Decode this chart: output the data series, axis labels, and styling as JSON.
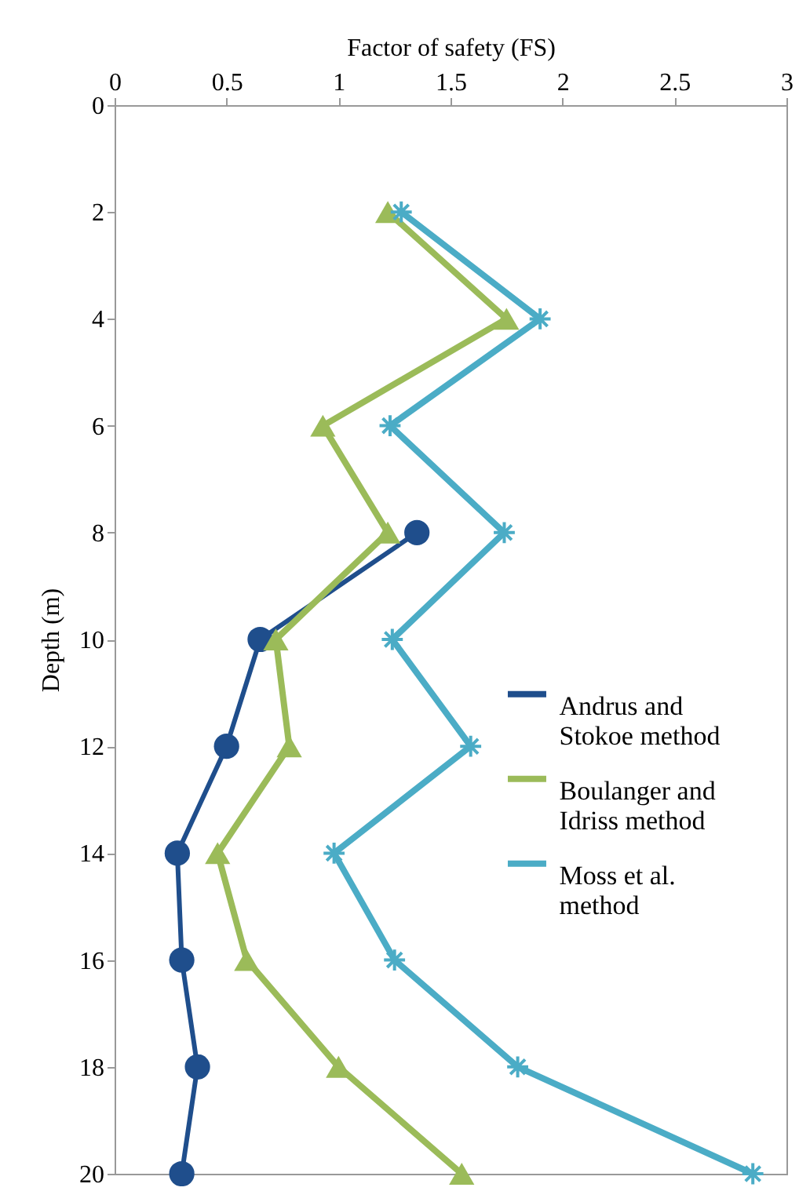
{
  "chart_data": {
    "type": "line",
    "xlabel": "Factor of safety (FS)",
    "ylabel": "Depth (m)",
    "xlim": [
      0,
      3
    ],
    "xticks": [
      0,
      0.5,
      1,
      1.5,
      2,
      2.5,
      3
    ],
    "ylim": [
      20,
      0
    ],
    "yticks": [
      0,
      2,
      4,
      6,
      8,
      10,
      12,
      14,
      16,
      18,
      20
    ],
    "grid": false,
    "legend": "right",
    "line_style": "solid",
    "series": [
      {
        "name": "Andrus and Stokoe method",
        "color": "#1f4e8c",
        "marker": "circle",
        "x": [
          1.35,
          0.65,
          0.5,
          0.28,
          0.3,
          0.37,
          0.3
        ],
        "values": [
          8,
          10,
          12,
          14,
          16,
          18,
          20
        ]
      },
      {
        "name": "Boulanger and Idriss method",
        "color": "#9bbb59",
        "marker": "triangle",
        "x": [
          1.22,
          1.75,
          0.93,
          1.22,
          0.72,
          0.78,
          0.46,
          0.59,
          1.0,
          1.55
        ],
        "values": [
          2,
          4,
          6,
          8,
          10,
          12,
          14,
          16,
          18,
          20
        ]
      },
      {
        "name": "Moss et al. method",
        "color": "#4bacc6",
        "marker": "cross",
        "x": [
          1.28,
          1.9,
          1.23,
          1.74,
          1.24,
          1.59,
          0.98,
          1.25,
          1.8,
          2.85
        ],
        "values": [
          2,
          4,
          6,
          8,
          10,
          12,
          14,
          16,
          18,
          20
        ]
      }
    ]
  }
}
